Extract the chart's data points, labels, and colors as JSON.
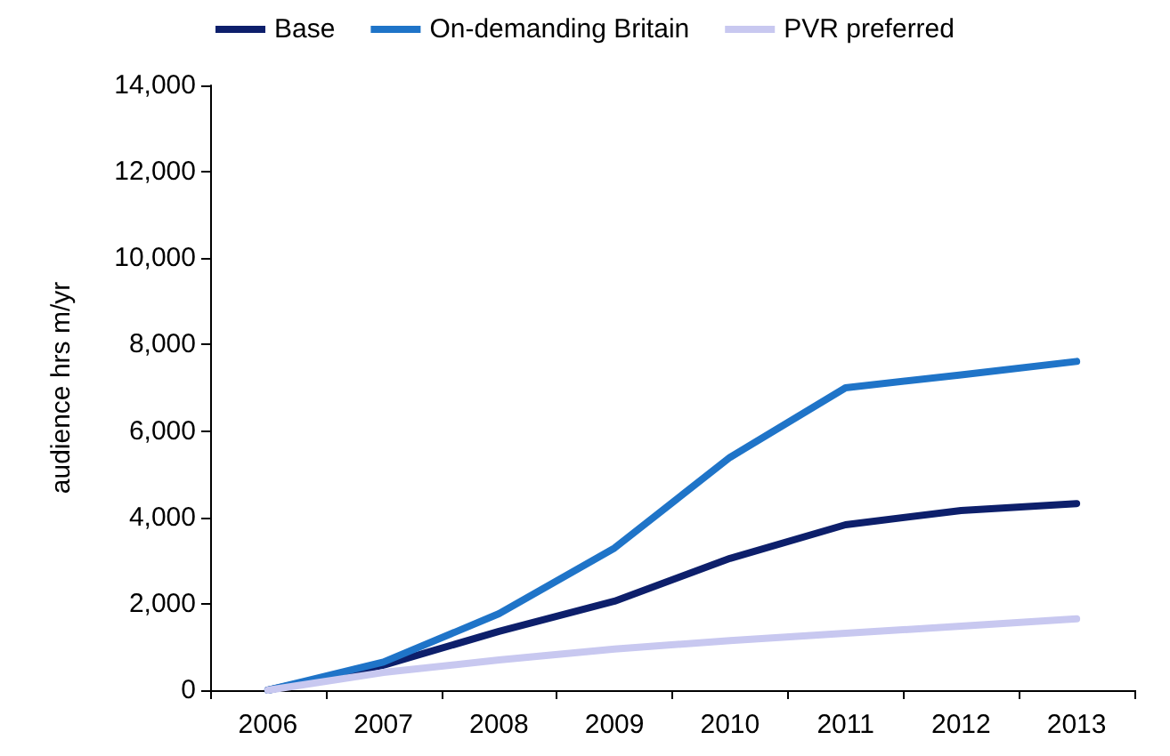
{
  "chart_data": {
    "type": "line",
    "ylabel": "audience hrs m/yr",
    "categories": [
      "2006",
      "2007",
      "2008",
      "2009",
      "2010",
      "2011",
      "2012",
      "2013"
    ],
    "series": [
      {
        "name": "Base",
        "color": "#0d1f6b",
        "values": [
          0,
          580,
          1360,
          2060,
          3050,
          3830,
          4160,
          4320
        ]
      },
      {
        "name": "On-demanding Britain",
        "color": "#1f74c8",
        "values": [
          0,
          650,
          1770,
          3290,
          5390,
          7000,
          7300,
          7610
        ]
      },
      {
        "name": "PVR preferred",
        "color": "#c8c8f0",
        "values": [
          0,
          410,
          700,
          950,
          1150,
          1320,
          1480,
          1650
        ]
      }
    ],
    "ylim": [
      0,
      14000
    ],
    "yticks": [
      0,
      {
        "value": 2000,
        "label": "2,000"
      },
      {
        "value": 4000,
        "label": "4,000"
      },
      {
        "value": 6000,
        "label": "6,000"
      },
      {
        "value": 8000,
        "label": "8,000"
      },
      {
        "value": 10000,
        "label": "10,000"
      },
      {
        "value": 12000,
        "label": "12,000"
      },
      {
        "value": 14000,
        "label": "14,000"
      }
    ],
    "grid": false,
    "legend": "top",
    "marker": "none",
    "line_style": "solid"
  }
}
